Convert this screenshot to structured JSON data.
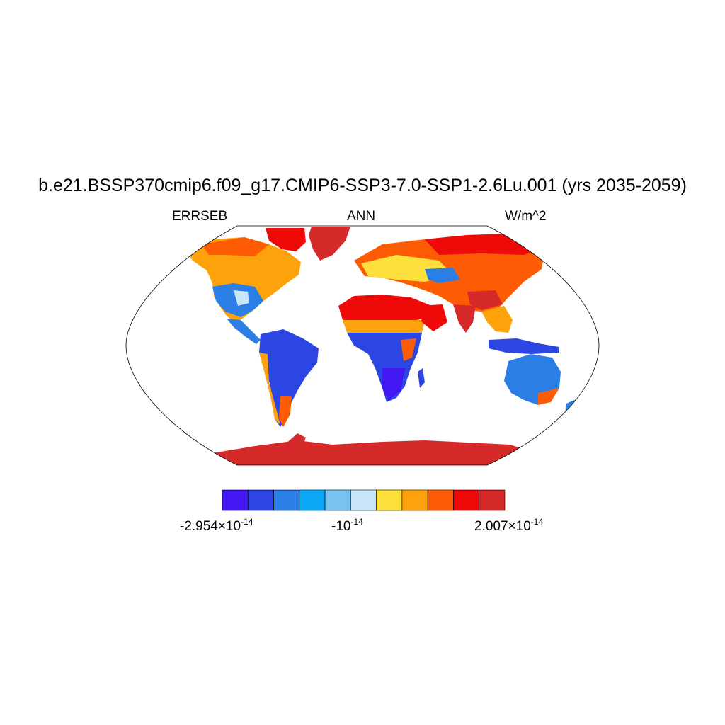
{
  "title": "b.e21.BSSP370cmip6.f09_g17.CMIP6-SSP3-7.0-SSP1-2.6Lu.001 (yrs 2035-2059)",
  "subtitle_left": "ERRSEB",
  "subtitle_center": "ANN",
  "subtitle_right": "W/m^2",
  "colorbar": {
    "colors": [
      "#4217f2",
      "#2b46e3",
      "#2a7ee6",
      "#0aa8f5",
      "#79c4ef",
      "#c8e6f7",
      "#fde03c",
      "#fda20b",
      "#fd5c04",
      "#ef0a0a",
      "#d62a2a"
    ],
    "labels": [
      {
        "base": "-2.954×10",
        "exp": "-14"
      },
      {
        "base": "-10",
        "exp": "-14"
      },
      {
        "base": "2.007×10",
        "exp": "-14"
      }
    ]
  },
  "map_regions": {
    "north_america": "#fda20b",
    "tropical_south_america": "#2b46e3",
    "sahara_arabia": "#ef0a0a",
    "central_africa": "#2b46e3",
    "eurasia": "#fd5c04",
    "greenland": "#d62a2a",
    "australia": "#2a7ee6",
    "antarctica": "#d62a2a"
  }
}
